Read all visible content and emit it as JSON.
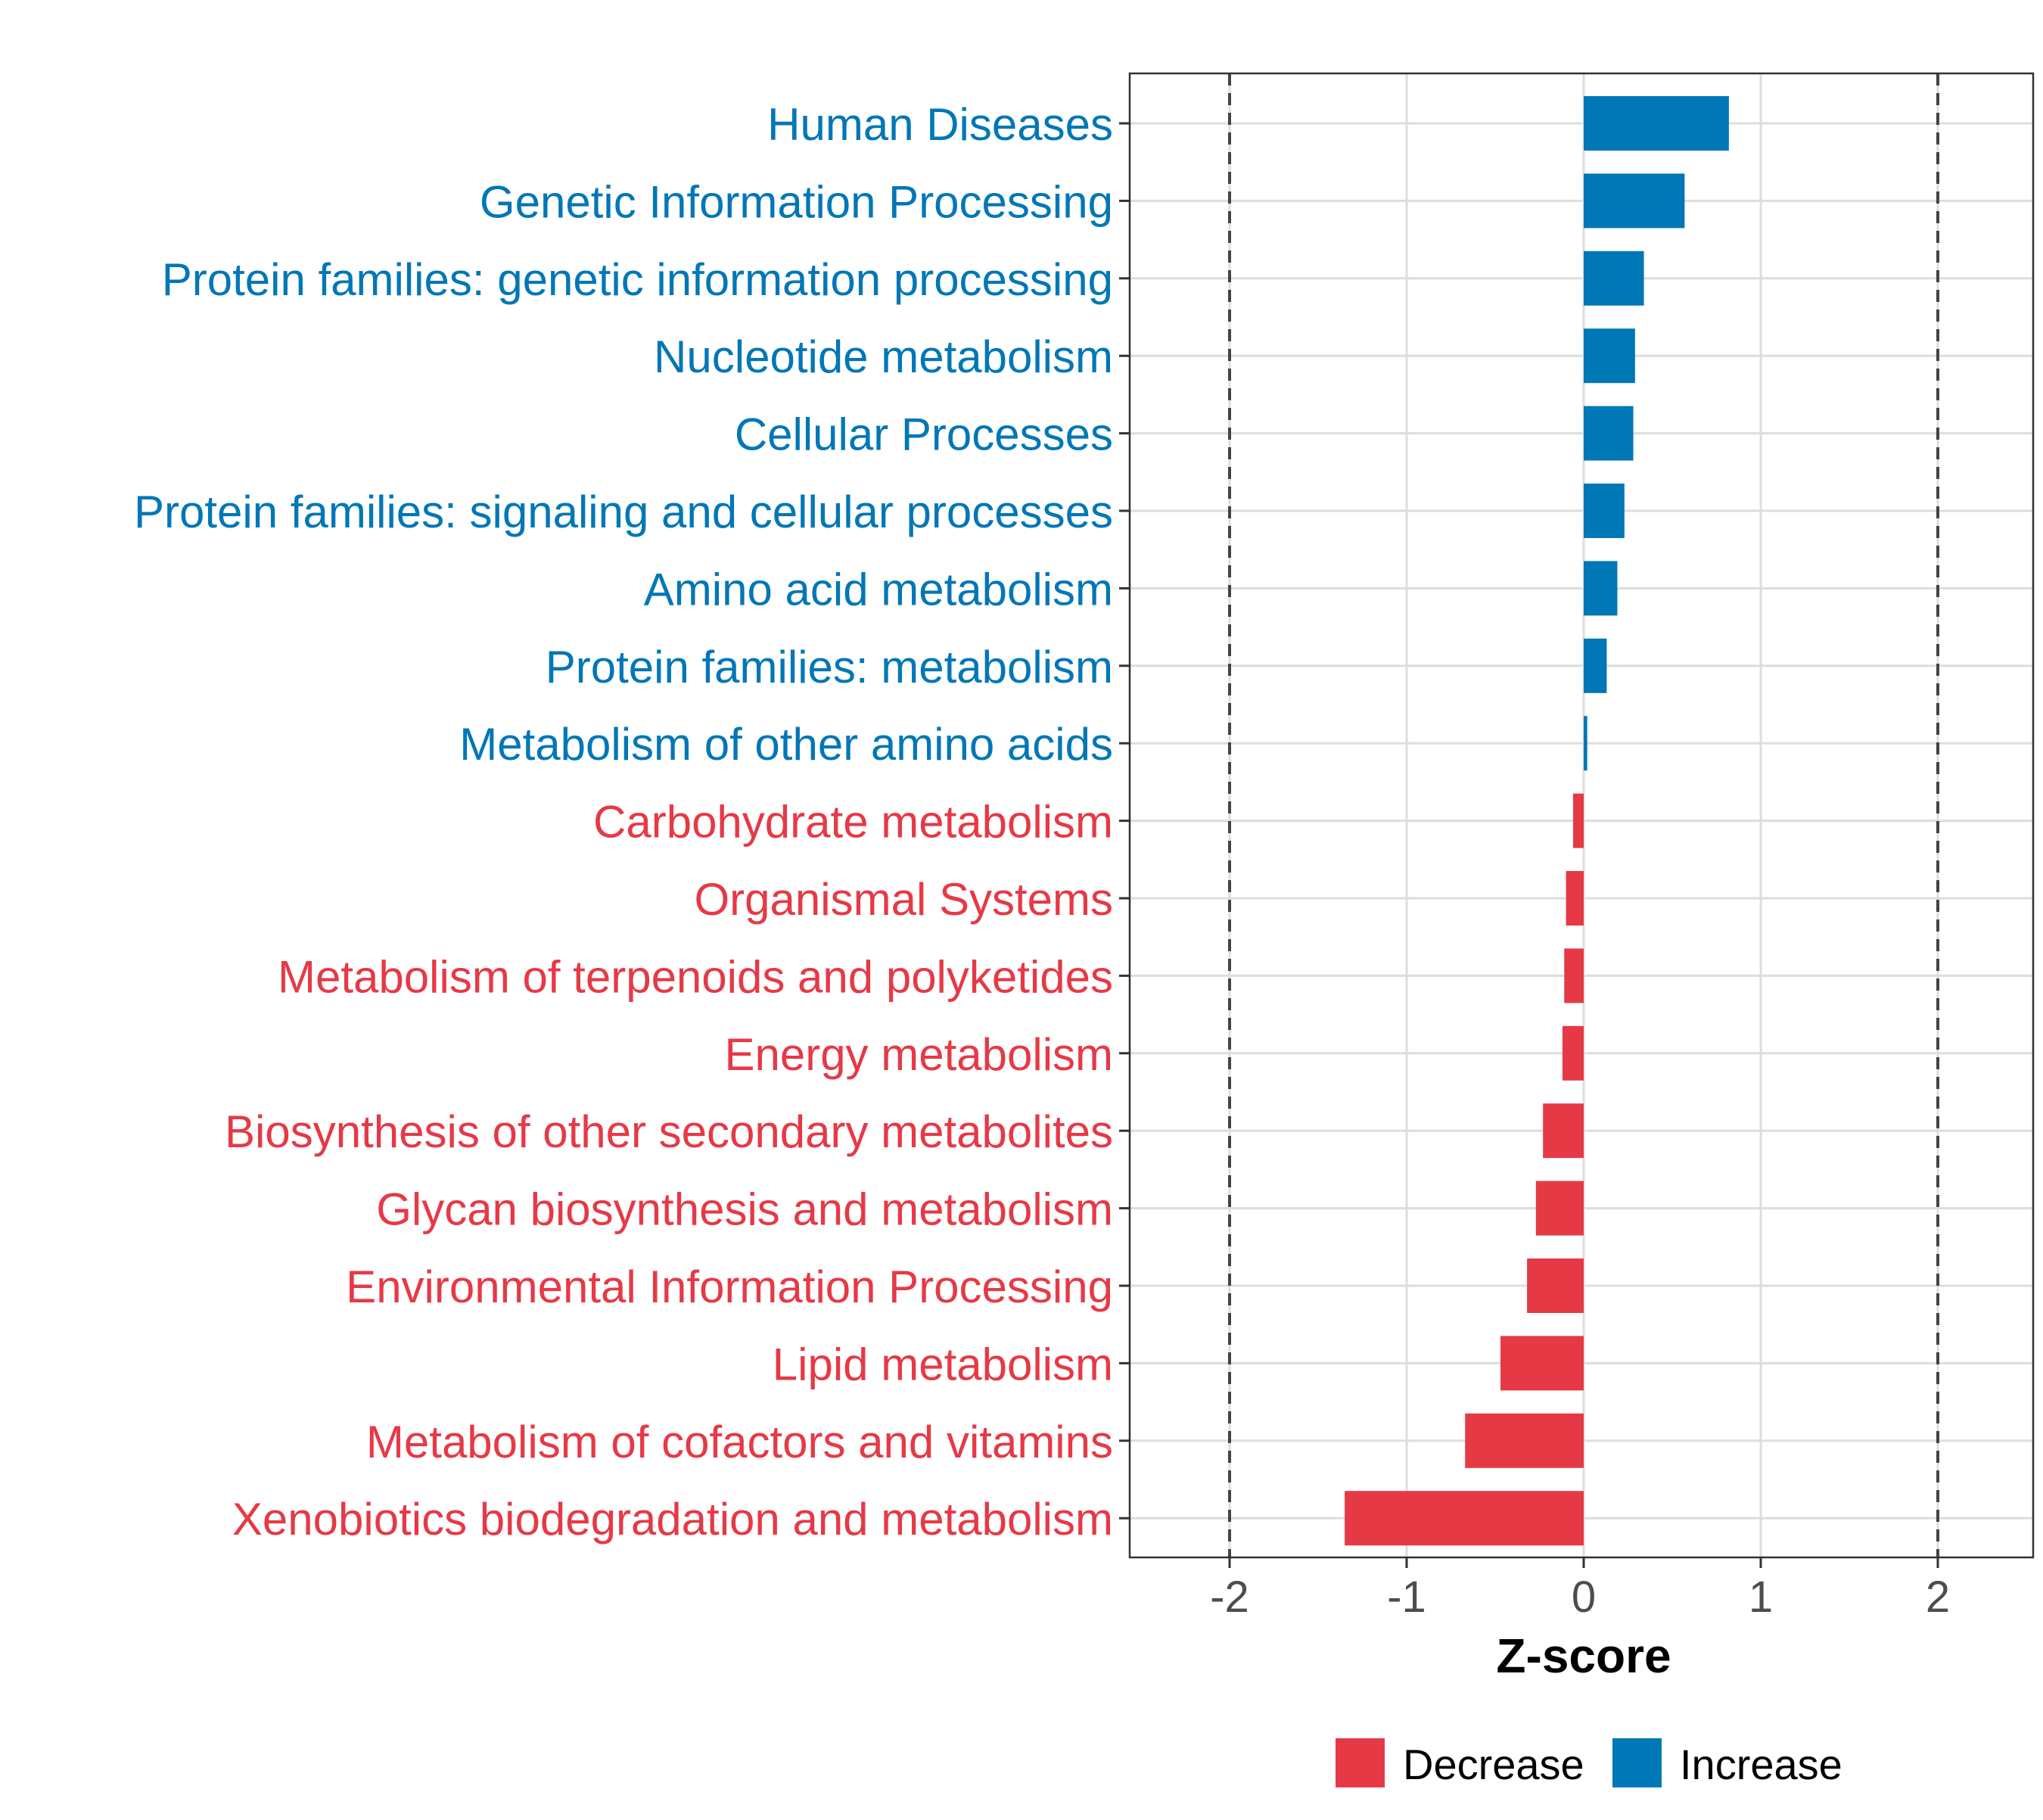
{
  "chart_data": {
    "type": "bar",
    "orientation": "horizontal",
    "title": "",
    "xlabel": "Z-score",
    "ylabel": "",
    "xlim": [
      -2.57,
      2.57
    ],
    "xticks": [
      -2,
      -1,
      0,
      1,
      2
    ],
    "xtick_labels": [
      "-2",
      "-1",
      "0",
      "1",
      "2"
    ],
    "reference_lines": [
      -2,
      2
    ],
    "grid": true,
    "categories": [
      "Human Diseases",
      "Genetic Information Processing",
      "Protein families: genetic information processing",
      "Nucleotide metabolism",
      "Cellular Processes",
      "Protein families: signaling and cellular processes",
      "Amino acid metabolism",
      "Protein families: metabolism",
      "Metabolism of other amino acids",
      "Carbohydrate metabolism",
      "Organismal Systems",
      "Metabolism of terpenoids and polyketides",
      "Energy metabolism",
      "Biosynthesis of other secondary metabolites",
      "Glycan biosynthesis and metabolism",
      "Environmental Information Processing",
      "Lipid metabolism",
      "Metabolism of cofactors and vitamins",
      "Xenobiotics biodegradation and metabolism"
    ],
    "values": [
      0.82,
      0.57,
      0.34,
      0.29,
      0.28,
      0.23,
      0.19,
      0.13,
      0.02,
      -0.06,
      -0.1,
      -0.11,
      -0.12,
      -0.23,
      -0.27,
      -0.32,
      -0.47,
      -0.67,
      -1.35
    ],
    "series_groups": [
      "Increase",
      "Increase",
      "Increase",
      "Increase",
      "Increase",
      "Increase",
      "Increase",
      "Increase",
      "Increase",
      "Decrease",
      "Decrease",
      "Decrease",
      "Decrease",
      "Decrease",
      "Decrease",
      "Decrease",
      "Decrease",
      "Decrease",
      "Decrease"
    ],
    "legend": {
      "position": "bottom",
      "entries": [
        {
          "label": "Decrease",
          "color": "#E63946"
        },
        {
          "label": "Increase",
          "color": "#0077B6"
        }
      ]
    }
  }
}
